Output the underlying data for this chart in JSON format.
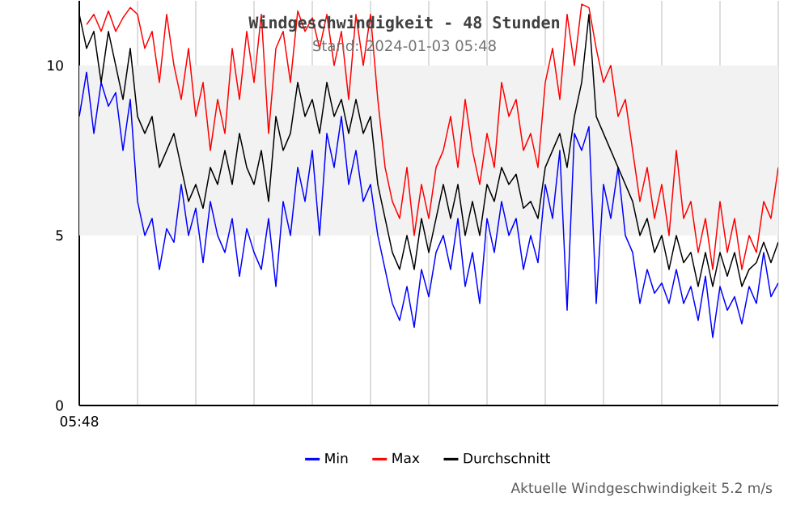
{
  "chart_data": {
    "type": "line",
    "title": "Windgeschwindigkeit - 48 Stunden",
    "subtitle": "Stand: 2024-01-03 05:48",
    "annotations": [
      "05:48",
      "Aktuelle Windgeschwindigkeit 5.2 m/s"
    ],
    "categories": [
      null,
      null,
      null,
      null,
      null,
      null,
      null,
      null,
      null,
      null,
      null,
      null,
      null,
      null,
      null,
      null,
      null,
      null,
      null,
      null,
      null,
      null,
      null,
      null,
      null,
      null,
      null,
      null,
      null,
      null,
      null,
      null,
      null,
      null,
      null,
      null,
      null,
      null,
      null,
      null,
      null,
      null,
      null,
      null,
      null,
      null,
      null,
      null,
      null,
      null,
      null,
      null,
      null,
      null,
      null,
      null,
      null,
      null,
      null,
      null,
      null,
      null,
      null,
      null,
      null,
      null,
      null,
      null,
      null,
      null,
      null,
      null,
      null,
      null,
      null,
      null,
      null,
      null,
      null,
      null,
      null,
      null,
      null,
      null,
      null,
      null,
      null,
      null,
      null,
      null,
      null,
      null,
      null,
      null,
      null,
      null,
      null
    ],
    "series": [
      {
        "name": "Min",
        "color": "#0000ff",
        "values": [
          8.5,
          9.8,
          8.0,
          9.5,
          8.8,
          9.2,
          7.5,
          9.0,
          6.0,
          5.0,
          5.5,
          4.0,
          5.2,
          4.8,
          6.5,
          5.0,
          5.8,
          4.2,
          6.0,
          5.0,
          4.5,
          5.5,
          3.8,
          5.2,
          4.5,
          4.0,
          5.5,
          3.5,
          6.0,
          5.0,
          7.0,
          6.0,
          7.5,
          5.0,
          8.0,
          7.0,
          8.5,
          6.5,
          7.5,
          6.0,
          6.5,
          5.0,
          4.0,
          3.0,
          2.5,
          3.5,
          2.3,
          4.0,
          3.2,
          4.5,
          5.0,
          4.0,
          5.5,
          3.5,
          4.5,
          3.0,
          5.5,
          4.5,
          6.0,
          5.0,
          5.5,
          4.0,
          5.0,
          4.2,
          6.5,
          5.5,
          7.5,
          2.8,
          8.0,
          7.5,
          8.2,
          3.0,
          6.5,
          5.5,
          7.0,
          5.0,
          4.5,
          3.0,
          4.0,
          3.3,
          3.6,
          3.0,
          4.0,
          3.0,
          3.5,
          2.5,
          3.8,
          2.0,
          3.5,
          2.8,
          3.2,
          2.4,
          3.5,
          3.0,
          4.5,
          3.2,
          3.6
        ]
      },
      {
        "name": "Max",
        "color": "#ff0000",
        "values": [
          null,
          11.2,
          11.5,
          11.0,
          11.6,
          11.0,
          11.4,
          11.7,
          11.5,
          10.5,
          11.0,
          9.5,
          11.5,
          10.0,
          9.0,
          10.5,
          8.5,
          9.5,
          7.5,
          9.0,
          8.0,
          10.5,
          9.0,
          11.0,
          9.5,
          11.5,
          8.0,
          10.5,
          11.0,
          9.5,
          11.6,
          11.0,
          11.4,
          10.5,
          11.5,
          10.0,
          11.0,
          9.0,
          11.5,
          10.0,
          11.5,
          9.0,
          7.0,
          6.0,
          5.5,
          7.0,
          5.0,
          6.5,
          5.5,
          7.0,
          7.5,
          8.5,
          7.0,
          9.0,
          7.5,
          6.5,
          8.0,
          7.0,
          9.5,
          8.5,
          9.0,
          7.5,
          8.0,
          7.0,
          9.5,
          10.5,
          9.0,
          11.5,
          10.0,
          11.8,
          11.7,
          10.5,
          9.5,
          10.0,
          8.5,
          9.0,
          7.5,
          6.0,
          7.0,
          5.5,
          6.5,
          5.0,
          7.5,
          5.5,
          6.0,
          4.5,
          5.5,
          4.0,
          6.0,
          4.5,
          5.5,
          4.0,
          5.0,
          4.5,
          6.0,
          5.5,
          7.0
        ]
      },
      {
        "name": "Durchschnitt",
        "color": "#000000",
        "values": [
          11.5,
          10.5,
          11.0,
          9.5,
          11.0,
          10.0,
          9.0,
          10.5,
          8.5,
          8.0,
          8.5,
          7.0,
          7.5,
          8.0,
          7.0,
          6.0,
          6.5,
          5.8,
          7.0,
          6.5,
          7.5,
          6.5,
          8.0,
          7.0,
          6.5,
          7.5,
          6.0,
          8.5,
          7.5,
          8.0,
          9.5,
          8.5,
          9.0,
          8.0,
          9.5,
          8.5,
          9.0,
          8.0,
          9.0,
          8.0,
          8.5,
          6.5,
          5.5,
          4.5,
          4.0,
          5.0,
          4.0,
          5.5,
          4.5,
          5.5,
          6.5,
          5.5,
          6.5,
          5.0,
          6.0,
          5.0,
          6.5,
          6.0,
          7.0,
          6.5,
          6.8,
          5.8,
          6.0,
          5.5,
          7.0,
          7.5,
          8.0,
          7.0,
          8.5,
          9.5,
          11.5,
          8.5,
          8.0,
          7.5,
          7.0,
          6.5,
          6.0,
          5.0,
          5.5,
          4.5,
          5.0,
          4.0,
          5.0,
          4.2,
          4.5,
          3.5,
          4.5,
          3.5,
          4.5,
          3.8,
          4.5,
          3.5,
          4.0,
          4.2,
          4.8,
          4.2,
          4.8
        ]
      }
    ],
    "ylim": [
      0,
      11.9
    ],
    "yticks": [
      0,
      5,
      10
    ],
    "bands": [
      {
        "axis": "y",
        "from": 5,
        "to": 10,
        "color": "#f2f2f2"
      }
    ],
    "grid": "x",
    "legend": "bottom",
    "marker": "none",
    "line_style": "solid"
  }
}
